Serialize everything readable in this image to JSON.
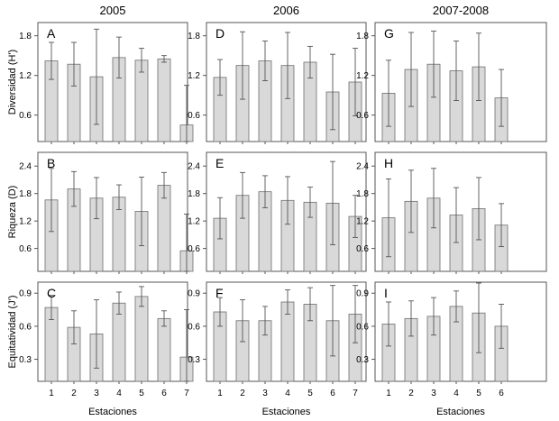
{
  "figure": {
    "column_titles": [
      "2005",
      "2006",
      "2007-2008"
    ],
    "row_ylabels": [
      "Diversidad (H')",
      "Riqueza (D)",
      "Equitatividad (J')"
    ],
    "xlabel": "Estaciones",
    "colors": {
      "bar_fill": "#d9d9d9",
      "bar_stroke": "#6e6e6e",
      "frame": "#555555",
      "errorbar": "#555555"
    }
  },
  "chart_data": [
    {
      "type": "bar",
      "panel": "A",
      "column": "2005",
      "ylabel": "Diversidad (H')",
      "categories": [
        "1",
        "2",
        "3",
        "4",
        "5",
        "6",
        "7"
      ],
      "values": [
        1.42,
        1.37,
        1.18,
        1.47,
        1.43,
        1.45,
        0.45
      ],
      "error": [
        0.28,
        0.33,
        0.72,
        0.31,
        0.18,
        0.05,
        0.6
      ],
      "ylim": [
        0.2,
        2.0
      ],
      "yticks": [
        "0.6",
        "1.2",
        "1.8"
      ],
      "ytick_values": [
        0.6,
        1.2,
        1.8
      ]
    },
    {
      "type": "bar",
      "panel": "D",
      "column": "2006",
      "ylabel": "Diversidad (H')",
      "categories": [
        "1",
        "2",
        "3",
        "4",
        "5",
        "6",
        "7"
      ],
      "values": [
        1.17,
        1.35,
        1.42,
        1.35,
        1.4,
        0.95,
        1.1
      ],
      "error": [
        0.27,
        0.51,
        0.3,
        0.5,
        0.24,
        0.57,
        0.51
      ],
      "ylim": [
        0.2,
        2.0
      ],
      "yticks": [
        "0.6",
        "1.2",
        "1.8"
      ],
      "ytick_values": [
        0.6,
        1.2,
        1.8
      ]
    },
    {
      "type": "bar",
      "panel": "G",
      "column": "2007-2008",
      "ylabel": "Diversidad (H')",
      "categories": [
        "1",
        "2",
        "3",
        "4",
        "5",
        "6"
      ],
      "values": [
        0.93,
        1.29,
        1.37,
        1.27,
        1.33,
        0.86
      ],
      "error": [
        0.5,
        0.56,
        0.5,
        0.45,
        0.51,
        0.43
      ],
      "ylim": [
        0.2,
        2.0
      ],
      "yticks": [
        "0.6",
        "1.2",
        "1.8"
      ],
      "ytick_values": [
        0.6,
        1.2,
        1.8
      ]
    },
    {
      "type": "bar",
      "panel": "B",
      "column": "2005",
      "ylabel": "Riqueza (D)",
      "categories": [
        "1",
        "2",
        "3",
        "4",
        "5",
        "6",
        "7"
      ],
      "values": [
        1.66,
        1.9,
        1.7,
        1.72,
        1.41,
        1.98,
        0.55
      ],
      "error": [
        0.69,
        0.38,
        0.45,
        0.27,
        0.75,
        0.28,
        0.8
      ],
      "ylim": [
        0.1,
        2.7
      ],
      "yticks": [
        "0.6",
        "1.2",
        "1.8",
        "2.4"
      ],
      "ytick_values": [
        0.6,
        1.2,
        1.8,
        2.4
      ]
    },
    {
      "type": "bar",
      "panel": "E",
      "column": "2006",
      "ylabel": "Riqueza (D)",
      "categories": [
        "1",
        "2",
        "3",
        "4",
        "5",
        "6",
        "7"
      ],
      "values": [
        1.26,
        1.76,
        1.84,
        1.65,
        1.61,
        1.59,
        1.3
      ],
      "error": [
        0.45,
        0.5,
        0.35,
        0.52,
        0.33,
        0.91,
        0.46
      ],
      "ylim": [
        0.1,
        2.7
      ],
      "yticks": [
        "0.6",
        "1.2",
        "1.8",
        "2.4"
      ],
      "ytick_values": [
        0.6,
        1.2,
        1.8,
        2.4
      ]
    },
    {
      "type": "bar",
      "panel": "H",
      "column": "2007-2008",
      "ylabel": "Riqueza (D)",
      "categories": [
        "1",
        "2",
        "3",
        "4",
        "5",
        "6"
      ],
      "values": [
        1.27,
        1.63,
        1.7,
        1.33,
        1.47,
        1.11
      ],
      "error": [
        0.85,
        0.68,
        0.65,
        0.6,
        0.68,
        0.47
      ],
      "ylim": [
        0.1,
        2.7
      ],
      "yticks": [
        "0.6",
        "1.2",
        "1.8",
        "2.4"
      ],
      "ytick_values": [
        0.6,
        1.2,
        1.8,
        2.4
      ]
    },
    {
      "type": "bar",
      "panel": "C",
      "column": "2005",
      "ylabel": "Equitatividad (J')",
      "categories": [
        "1",
        "2",
        "3",
        "4",
        "5",
        "6",
        "7"
      ],
      "values": [
        0.77,
        0.59,
        0.53,
        0.81,
        0.87,
        0.67,
        0.32
      ],
      "error": [
        0.11,
        0.15,
        0.31,
        0.1,
        0.09,
        0.07,
        0.43
      ],
      "ylim": [
        0.1,
        1.0
      ],
      "yticks": [
        "0.3",
        "0.6",
        "0.9"
      ],
      "ytick_values": [
        0.3,
        0.6,
        0.9
      ]
    },
    {
      "type": "bar",
      "panel": "F",
      "column": "2006",
      "ylabel": "Equitatividad (J')",
      "categories": [
        "1",
        "2",
        "3",
        "4",
        "5",
        "6",
        "7"
      ],
      "values": [
        0.73,
        0.65,
        0.65,
        0.82,
        0.8,
        0.65,
        0.71
      ],
      "error": [
        0.13,
        0.19,
        0.13,
        0.11,
        0.15,
        0.32,
        0.26
      ],
      "ylim": [
        0.1,
        1.0
      ],
      "yticks": [
        "0.3",
        "0.6",
        "0.9"
      ],
      "ytick_values": [
        0.3,
        0.6,
        0.9
      ]
    },
    {
      "type": "bar",
      "panel": "I",
      "column": "2007-2008",
      "ylabel": "Equitatividad (J')",
      "categories": [
        "1",
        "2",
        "3",
        "4",
        "5",
        "6"
      ],
      "values": [
        0.62,
        0.67,
        0.69,
        0.78,
        0.72,
        0.6
      ],
      "error": [
        0.2,
        0.16,
        0.17,
        0.14,
        0.36,
        0.2
      ],
      "ylim": [
        0.1,
        1.0
      ],
      "yticks": [
        "0.3",
        "0.6",
        "0.9"
      ],
      "ytick_values": [
        0.3,
        0.6,
        0.9
      ]
    }
  ]
}
